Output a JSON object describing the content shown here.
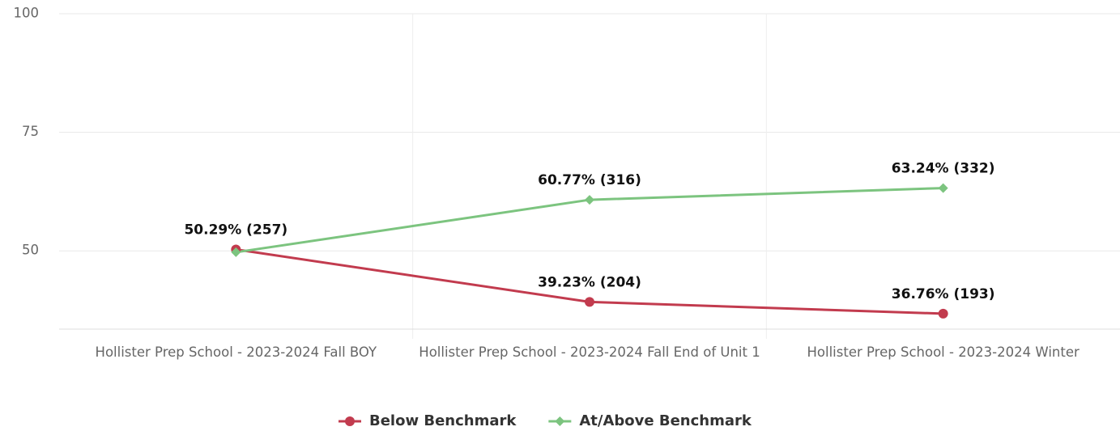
{
  "chart_data": {
    "type": "line",
    "categories": [
      "Hollister Prep School - 2023-2024 Fall BOY",
      "Hollister Prep School - 2023-2024 Fall End of Unit 1",
      "Hollister Prep School - 2023-2024 Winter"
    ],
    "series": [
      {
        "name": "Below Benchmark",
        "color": "#c23b4e",
        "marker": "circle",
        "values": [
          50.29,
          39.23,
          36.76
        ],
        "value_labels": [
          "50.29% (257)",
          "39.23% (204)",
          "36.76% (193)"
        ]
      },
      {
        "name": "At/Above Benchmark",
        "color": "#7cc47f",
        "marker": "diamond",
        "values": [
          49.71,
          60.77,
          63.24
        ],
        "value_labels": [
          null,
          "60.77% (316)",
          "63.24% (332)"
        ]
      }
    ],
    "ylim": [
      33.5,
      100
    ],
    "yticks": [
      50,
      75,
      100
    ],
    "grid": true,
    "legend": "bottom"
  }
}
